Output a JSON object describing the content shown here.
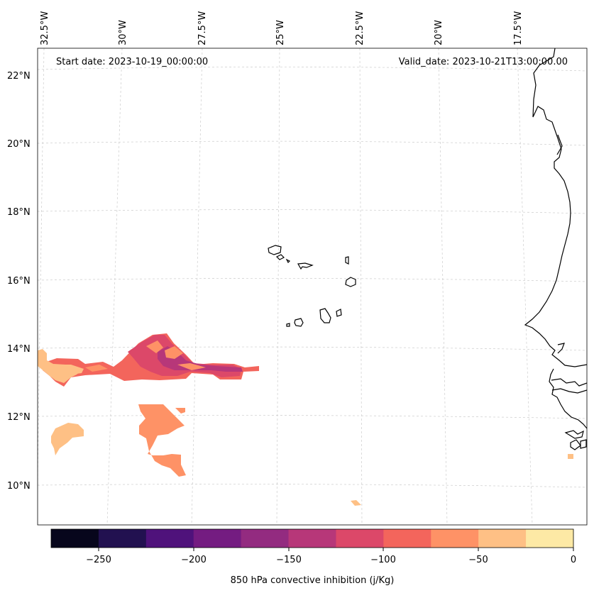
{
  "header": {
    "start_date": "Start date: 2023-10-19_00:00:00",
    "valid_date": "Valid_date: 2023-10-21T13:00:00.00"
  },
  "axes": {
    "lon_labels": [
      "32.5°W",
      "30°W",
      "27.5°W",
      "25°W",
      "22.5°W",
      "20°W",
      "17.5°W"
    ],
    "lat_labels": [
      "22°N",
      "20°N",
      "18°N",
      "16°N",
      "14°N",
      "12°N",
      "10°N"
    ],
    "gridlines": true
  },
  "colorbar": {
    "title": "850 hPa convective inhibition (j/Kg)",
    "ticks": [
      "−250",
      "−200",
      "−150",
      "−100",
      "−50",
      "0"
    ],
    "colors": [
      "#07061c",
      "#221150",
      "#4f127b",
      "#741c81",
      "#932b80",
      "#b73779",
      "#dc4869",
      "#f3655c",
      "#fe9266",
      "#fec085",
      "#fde9a5"
    ],
    "levels": [
      -275,
      -250,
      -225,
      -200,
      -175,
      -150,
      -125,
      -100,
      -75,
      -50,
      -25,
      0
    ]
  },
  "map": {
    "region": "Eastern tropical Atlantic — Cape Verde islands and West African coast",
    "field": "850 hPa convective inhibition"
  }
}
